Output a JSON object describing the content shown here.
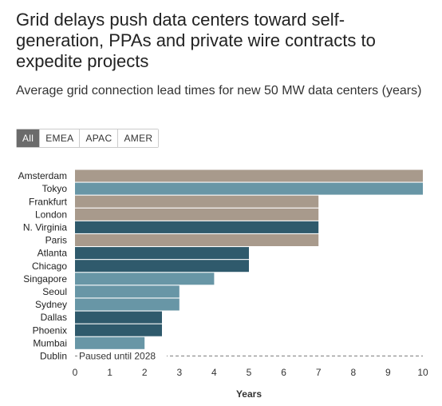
{
  "title": "Grid delays push data centers toward self-generation, PPAs and private wire contracts to expedite projects",
  "subtitle": "Average grid connection lead times for new 50 MW data centers (years)",
  "tabs": [
    {
      "label": "All",
      "active": true
    },
    {
      "label": "EMEA",
      "active": false
    },
    {
      "label": "APAC",
      "active": false
    },
    {
      "label": "AMER",
      "active": false
    }
  ],
  "chart_data": {
    "type": "bar",
    "orientation": "horizontal",
    "categories": [
      "Amsterdam",
      "Tokyo",
      "Frankfurt",
      "London",
      "N. Virginia",
      "Paris",
      "Atlanta",
      "Chicago",
      "Singapore",
      "Seoul",
      "Sydney",
      "Dallas",
      "Phoenix",
      "Mumbai",
      "Dublin"
    ],
    "values": [
      10,
      10,
      7,
      7,
      7,
      7,
      5,
      5,
      4,
      3,
      3,
      2.5,
      2.5,
      2,
      null
    ],
    "regions": [
      "EMEA",
      "APAC",
      "EMEA",
      "EMEA",
      "AMER",
      "EMEA",
      "AMER",
      "AMER",
      "APAC",
      "APAC",
      "APAC",
      "AMER",
      "AMER",
      "APAC",
      "EMEA"
    ],
    "region_colors": {
      "EMEA": "#a89a8c",
      "APAC": "#6896a6",
      "AMER": "#2f5a6c"
    },
    "annotation": {
      "category": "Dublin",
      "text": "Paused until 2028"
    },
    "xlabel": "Years",
    "ylabel": "",
    "xlim": [
      0,
      10
    ],
    "xticks": [
      0,
      1,
      2,
      3,
      4,
      5,
      6,
      7,
      8,
      9,
      10
    ],
    "grid": false
  }
}
